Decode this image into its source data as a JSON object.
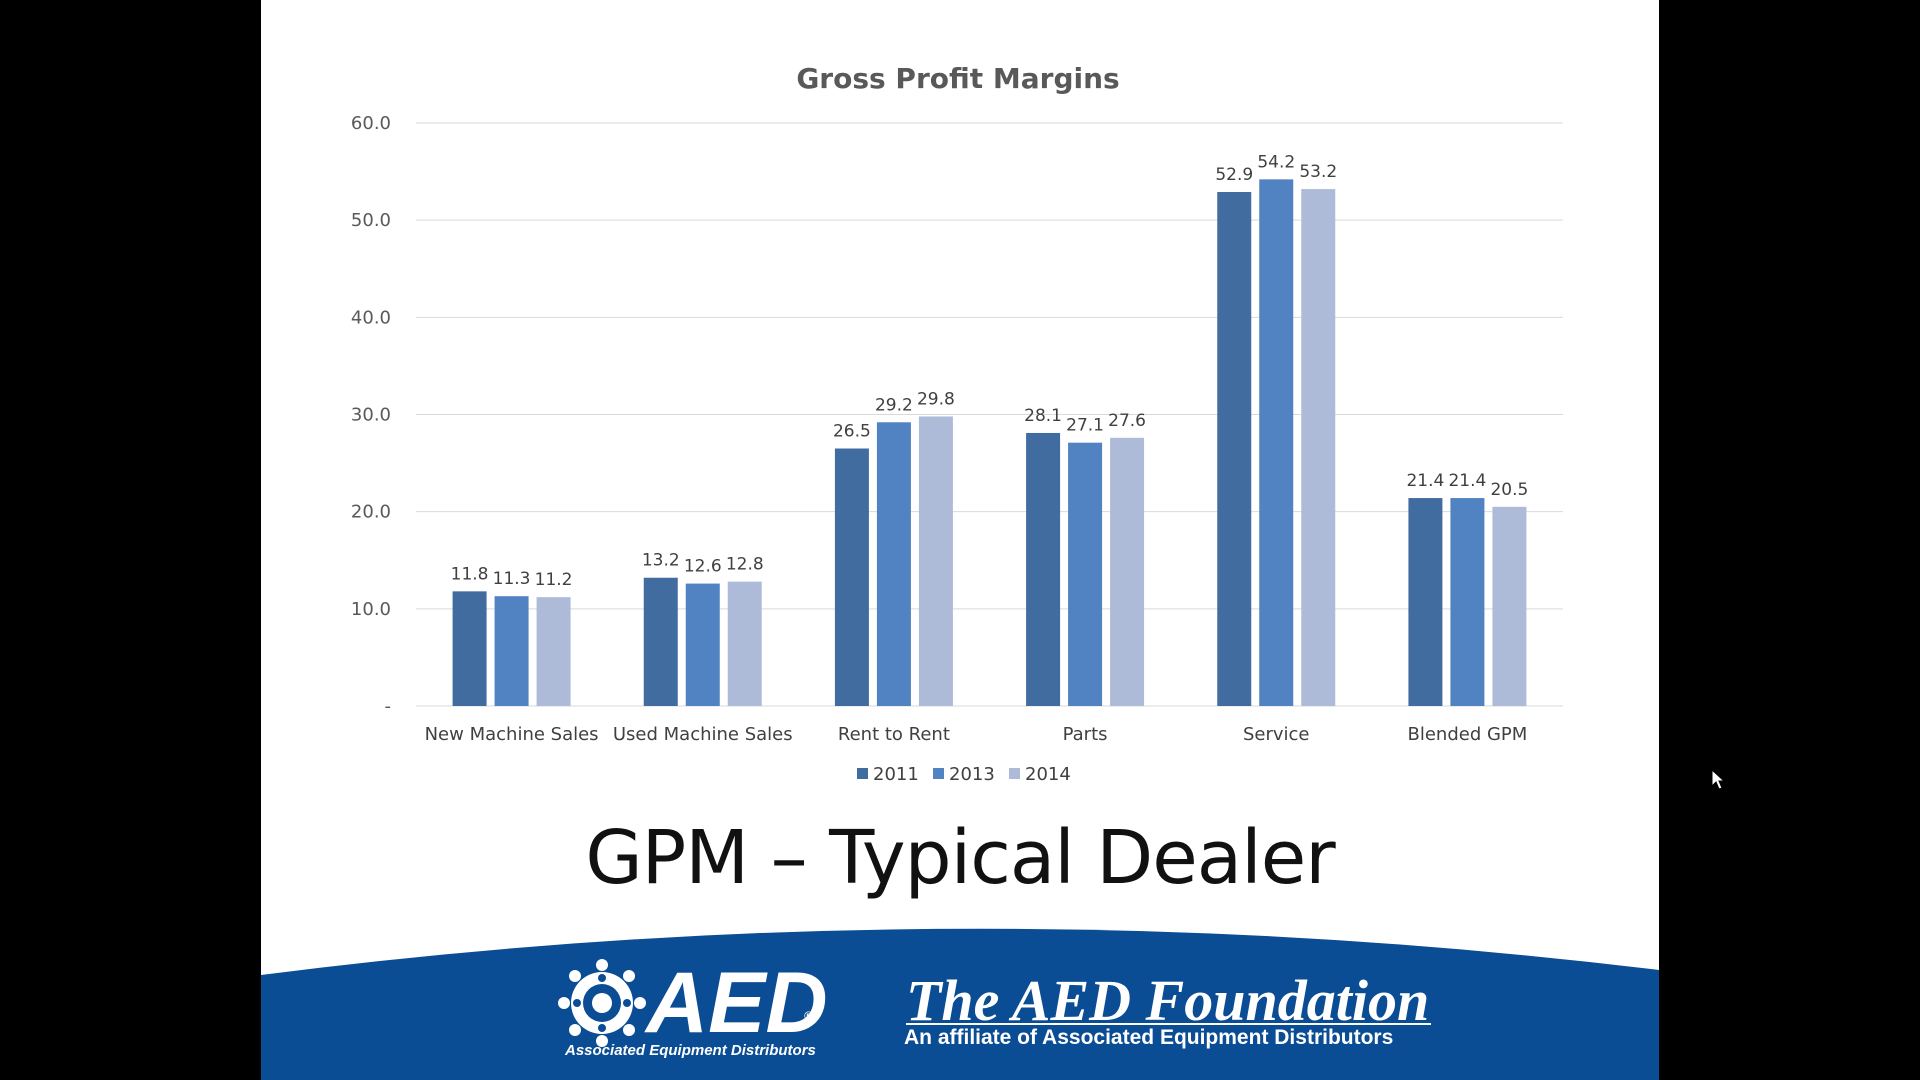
{
  "slide": {
    "title": "GPM – Typical Dealer"
  },
  "branding": {
    "aed_logo_text": "AED",
    "aed_subtitle": "Associated Equipment Distributors",
    "aed_registered": "®",
    "foundation_title": "The AED Foundation",
    "foundation_subtitle": "An affiliate of Associated Equipment Distributors",
    "banner_color": "#0b4d94"
  },
  "chart_data": {
    "type": "bar",
    "title": "Gross Profit Margins",
    "categories": [
      "New Machine Sales",
      "Used Machine Sales",
      "Rent to Rent",
      "Parts",
      "Service",
      "Blended GPM"
    ],
    "series": [
      {
        "name": "2011",
        "color": "#416ca0",
        "values": [
          11.8,
          13.2,
          26.5,
          28.1,
          52.9,
          21.4
        ]
      },
      {
        "name": "2013",
        "color": "#5182c1",
        "values": [
          11.3,
          12.6,
          29.2,
          27.1,
          54.2,
          21.4
        ]
      },
      {
        "name": "2014",
        "color": "#adbbd9",
        "values": [
          11.2,
          12.8,
          29.8,
          27.6,
          53.2,
          20.5
        ]
      }
    ],
    "ylim": [
      0,
      60
    ],
    "yticks": [
      "-",
      "10.0",
      "20.0",
      "30.0",
      "40.0",
      "50.0",
      "60.0"
    ],
    "grid": true,
    "legend_position": "bottom"
  }
}
